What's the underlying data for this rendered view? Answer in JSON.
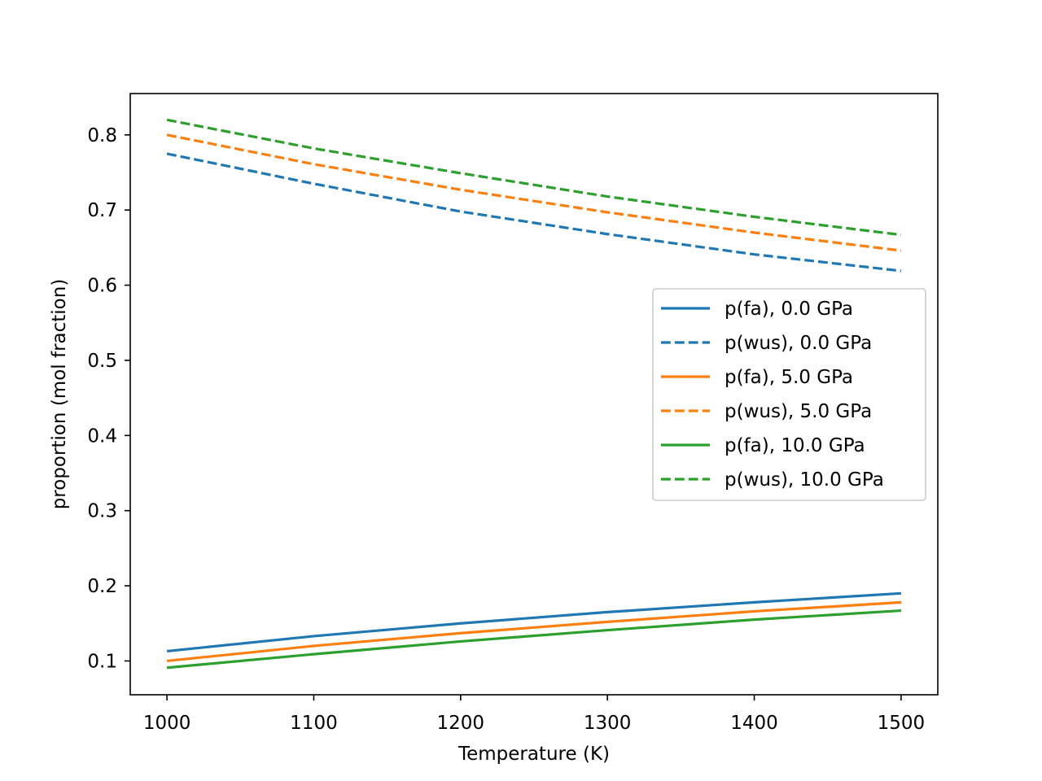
{
  "chart_data": {
    "type": "line",
    "xlabel": "Temperature (K)",
    "ylabel": "proportion (mol fraction)",
    "xlim": [
      975,
      1525
    ],
    "ylim": [
      0.055,
      0.855
    ],
    "xticks": [
      1000,
      1100,
      1200,
      1300,
      1400,
      1500
    ],
    "yticks": [
      0.1,
      0.2,
      0.3,
      0.4,
      0.5,
      0.6,
      0.7,
      0.8
    ],
    "grid": false,
    "legend_position": "center-right",
    "x": [
      1000,
      1100,
      1200,
      1300,
      1400,
      1500
    ],
    "series": [
      {
        "name": "p(fa), 0.0 GPa",
        "color": "#1f77b4",
        "style": "solid",
        "values": [
          0.113,
          0.133,
          0.15,
          0.165,
          0.178,
          0.19
        ]
      },
      {
        "name": "p(wus), 0.0 GPa",
        "color": "#1f77b4",
        "style": "dashed",
        "values": [
          0.775,
          0.735,
          0.698,
          0.668,
          0.641,
          0.619
        ]
      },
      {
        "name": "p(fa), 5.0 GPa",
        "color": "#ff7f0e",
        "style": "solid",
        "values": [
          0.1,
          0.12,
          0.137,
          0.152,
          0.166,
          0.178
        ]
      },
      {
        "name": "p(wus), 5.0 GPa",
        "color": "#ff7f0e",
        "style": "dashed",
        "values": [
          0.8,
          0.761,
          0.727,
          0.697,
          0.67,
          0.646
        ]
      },
      {
        "name": "p(fa), 10.0 GPa",
        "color": "#2ca02c",
        "style": "solid",
        "values": [
          0.091,
          0.109,
          0.126,
          0.141,
          0.155,
          0.167
        ]
      },
      {
        "name": "p(wus), 10.0 GPa",
        "color": "#2ca02c",
        "style": "dashed",
        "values": [
          0.82,
          0.782,
          0.749,
          0.718,
          0.691,
          0.667
        ]
      }
    ]
  }
}
